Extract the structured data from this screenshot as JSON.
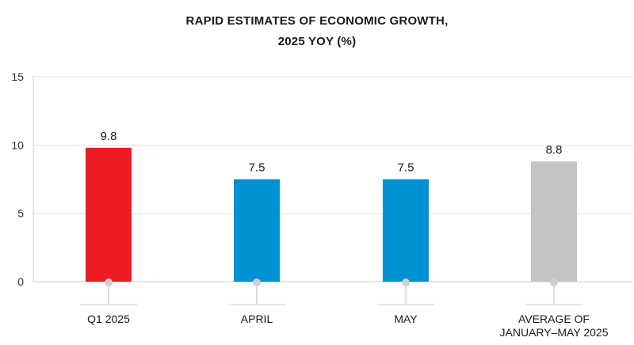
{
  "chart_data": {
    "type": "bar",
    "title_lines": [
      "RAPID ESTIMATES OF ECONOMIC GROWTH,",
      "2025 YOY (%)"
    ],
    "categories": [
      [
        "Q1 2025"
      ],
      [
        "APRIL"
      ],
      [
        "MAY"
      ],
      [
        "AVERAGE OF",
        "JANUARY–MAY 2025"
      ]
    ],
    "values": [
      9.8,
      7.5,
      7.5,
      8.8
    ],
    "value_labels": [
      "9.8",
      "7.5",
      "7.5",
      "8.8"
    ],
    "bar_colors": [
      "#ed1c24",
      "#0091d5",
      "#0091d5",
      "#c4c4c6"
    ],
    "xlabel": "",
    "ylabel": "",
    "ylim": [
      0,
      15
    ],
    "yticks": [
      0,
      5,
      10,
      15
    ],
    "ytick_labels": [
      "0",
      "5",
      "10",
      "15"
    ],
    "grid": true,
    "legend": "none"
  }
}
